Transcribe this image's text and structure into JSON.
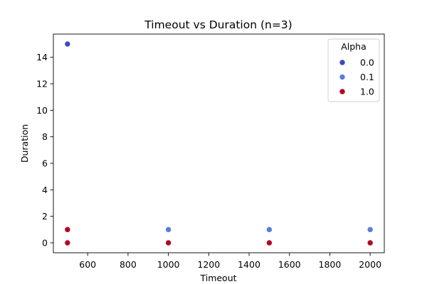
{
  "chart_data": {
    "type": "scatter",
    "title": "Timeout vs Duration (n=3)",
    "xlabel": "Timeout",
    "ylabel": "Duration",
    "xlim": [
      430,
      2070
    ],
    "ylim": [
      -0.75,
      15.75
    ],
    "xticks": [
      600,
      800,
      1000,
      1200,
      1400,
      1600,
      1800,
      2000
    ],
    "yticks": [
      0,
      2,
      4,
      6,
      8,
      10,
      12,
      14
    ],
    "grid": false,
    "legend": {
      "title": "Alpha",
      "placement": "top-right"
    },
    "series": [
      {
        "name": "0.0",
        "color": "#3b4cc0",
        "points": [
          {
            "x": 500,
            "y": 15.0
          },
          {
            "x": 500,
            "y": 0.0
          }
        ]
      },
      {
        "name": "0.1",
        "color": "#5b7be0",
        "points": [
          {
            "x": 500,
            "y": 0.0
          },
          {
            "x": 1000,
            "y": 1.0
          },
          {
            "x": 1000,
            "y": 0.0
          },
          {
            "x": 1500,
            "y": 1.0
          },
          {
            "x": 1500,
            "y": 0.0
          },
          {
            "x": 2000,
            "y": 1.0
          },
          {
            "x": 2000,
            "y": 0.0
          }
        ]
      },
      {
        "name": "1.0",
        "color": "#b40426",
        "points": [
          {
            "x": 500,
            "y": 1.0
          },
          {
            "x": 500,
            "y": 0.0
          },
          {
            "x": 1000,
            "y": 0.0
          },
          {
            "x": 1500,
            "y": 0.0
          },
          {
            "x": 2000,
            "y": 0.0
          }
        ]
      }
    ]
  }
}
